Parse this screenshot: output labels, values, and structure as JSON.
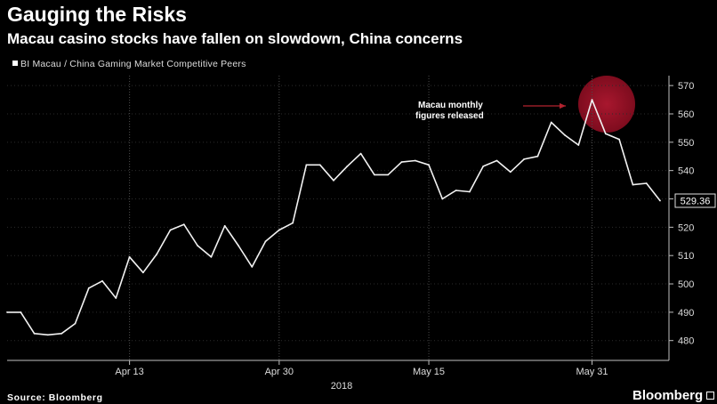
{
  "colors": {
    "background": "#000000",
    "text": "#ffffff",
    "series_line": "#f2f2f2",
    "grid": "#2c2c2c",
    "grid_vertical": "#4d4d4d",
    "axis": "#bfbfbf",
    "tick_text": "#dddddd",
    "annotation_arrow": "#b3232f",
    "highlight_center": "#a8172e",
    "highlight_edge": "#7e0c1e"
  },
  "chart_data": {
    "type": "line",
    "title": "Gauging the Risks",
    "subtitle": "Macau casino stocks have fallen on slowdown, China concerns",
    "xlabel": "2018",
    "ylim": [
      473,
      573.5
    ],
    "y_axis_side": "right",
    "grid": true,
    "legend_position": "top-left",
    "x": [
      "2018-04-02",
      "2018-04-03",
      "2018-04-04",
      "2018-04-05",
      "2018-04-06",
      "2018-04-09",
      "2018-04-10",
      "2018-04-11",
      "2018-04-12",
      "2018-04-13",
      "2018-04-16",
      "2018-04-17",
      "2018-04-18",
      "2018-04-19",
      "2018-04-20",
      "2018-04-23",
      "2018-04-24",
      "2018-04-25",
      "2018-04-26",
      "2018-04-27",
      "2018-04-30",
      "2018-05-01",
      "2018-05-02",
      "2018-05-03",
      "2018-05-04",
      "2018-05-07",
      "2018-05-08",
      "2018-05-09",
      "2018-05-10",
      "2018-05-11",
      "2018-05-14",
      "2018-05-15",
      "2018-05-16",
      "2018-05-17",
      "2018-05-18",
      "2018-05-21",
      "2018-05-22",
      "2018-05-23",
      "2018-05-24",
      "2018-05-25",
      "2018-05-28",
      "2018-05-29",
      "2018-05-30",
      "2018-05-31",
      "2018-06-01",
      "2018-06-04",
      "2018-06-05",
      "2018-06-06",
      "2018-06-07"
    ],
    "series": [
      {
        "name": "BI Macau / China Gaming Market Competitive Peers",
        "values": [
          490,
          490,
          482.5,
          482,
          482.5,
          486,
          498.5,
          501,
          495,
          509.5,
          504,
          510.5,
          519,
          521,
          513.5,
          509.5,
          520.5,
          513.5,
          506,
          515,
          519,
          521.5,
          542,
          542,
          536.5,
          541.5,
          546,
          538.5,
          538.5,
          543,
          543.5,
          542,
          530,
          533,
          532.5,
          541.5,
          543.5,
          539.5,
          544,
          545,
          557,
          552.5,
          549,
          565,
          553,
          551,
          535,
          535.5,
          529.36
        ]
      }
    ],
    "xticks": [
      {
        "date": "2018-04-13",
        "label": "Apr 13"
      },
      {
        "date": "2018-04-30",
        "label": "Apr 30"
      },
      {
        "date": "2018-05-15",
        "label": "May 15"
      },
      {
        "date": "2018-05-31",
        "label": "May 31"
      }
    ],
    "yticks": [
      480,
      490,
      500,
      510,
      520,
      530,
      540,
      550,
      560,
      570
    ],
    "last_value_label": "529.36",
    "annotation": {
      "line1": "Macau monthly",
      "line2": "figures released"
    }
  },
  "footer": {
    "source": "Source: Bloomberg",
    "logo_text": "Bloomberg"
  }
}
